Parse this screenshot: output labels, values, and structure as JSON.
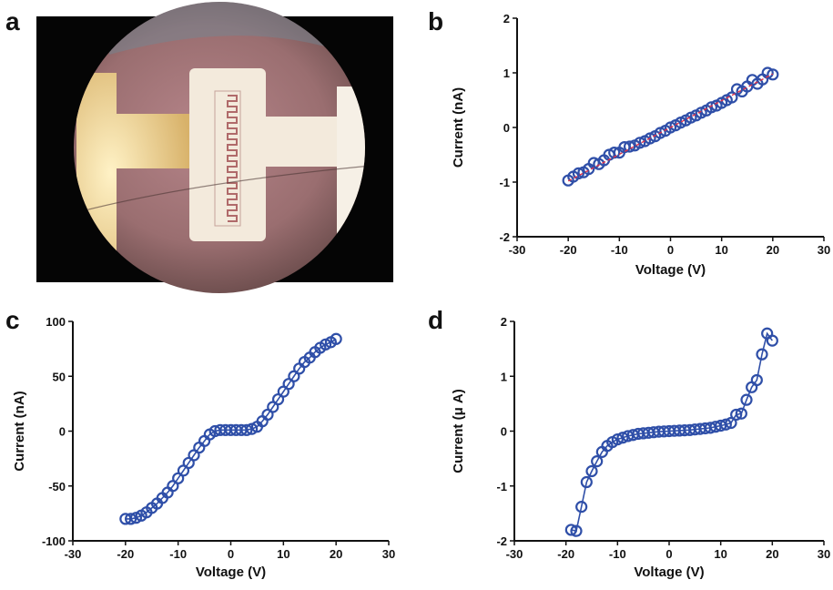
{
  "panels": {
    "a": "a",
    "b": "b",
    "c": "c",
    "d": "d"
  },
  "photo": {
    "description_icon": "microscope-micrograph-interdigitated-electrode"
  },
  "colors": {
    "marker": "#2f4fa8",
    "line": "#2f4fa8",
    "fit": "#e0334a",
    "axis": "#111111"
  },
  "chart_data": [
    {
      "id": "b",
      "type": "scatter",
      "xlabel": "Voltage (V)",
      "ylabel": "Current (nA)",
      "xlim": [
        -30,
        30
      ],
      "ylim": [
        -2,
        2
      ],
      "xticks": [
        -30,
        -20,
        -10,
        0,
        10,
        20,
        30
      ],
      "yticks": [
        -2,
        -1,
        0,
        1,
        2
      ],
      "fit_line": {
        "x": [
          -20,
          20
        ],
        "y": [
          -0.98,
          0.98
        ]
      },
      "series": [
        {
          "x": [
            -20,
            -19,
            -18,
            -17,
            -16,
            -15,
            -14,
            -13,
            -12,
            -11,
            -10,
            -9,
            -8,
            -7,
            -6,
            -5,
            -4,
            -3,
            -2,
            -1,
            0,
            1,
            2,
            3,
            4,
            5,
            6,
            7,
            8,
            9,
            10,
            11,
            12,
            13,
            14,
            15,
            16,
            17,
            18,
            19,
            20
          ],
          "y": [
            -0.97,
            -0.9,
            -0.84,
            -0.82,
            -0.76,
            -0.65,
            -0.67,
            -0.6,
            -0.5,
            -0.46,
            -0.46,
            -0.36,
            -0.35,
            -0.33,
            -0.28,
            -0.25,
            -0.2,
            -0.16,
            -0.1,
            -0.06,
            0.0,
            0.04,
            0.09,
            0.13,
            0.18,
            0.22,
            0.27,
            0.31,
            0.37,
            0.4,
            0.45,
            0.5,
            0.55,
            0.7,
            0.66,
            0.75,
            0.87,
            0.8,
            0.88,
            1.0,
            0.97
          ]
        }
      ]
    },
    {
      "id": "c",
      "type": "line",
      "xlabel": "Voltage (V)",
      "ylabel": "Current (nA)",
      "xlim": [
        -30,
        30
      ],
      "ylim": [
        -100,
        100
      ],
      "xticks": [
        -30,
        -20,
        -10,
        0,
        10,
        20,
        30
      ],
      "yticks": [
        -100,
        -50,
        0,
        50,
        100
      ],
      "series": [
        {
          "x": [
            -20,
            -19,
            -18,
            -17,
            -16,
            -15,
            -14,
            -13,
            -12,
            -11,
            -10,
            -9,
            -8,
            -7,
            -6,
            -5,
            -4,
            -3,
            -2,
            -1,
            0,
            1,
            2,
            3,
            4,
            5,
            6,
            7,
            8,
            9,
            10,
            11,
            12,
            13,
            14,
            15,
            16,
            17,
            18,
            19,
            20
          ],
          "y": [
            -80,
            -80,
            -79,
            -77,
            -74,
            -70,
            -66,
            -61,
            -56,
            -50,
            -43,
            -36,
            -29,
            -22,
            -15,
            -9,
            -3,
            0,
            1,
            1,
            1,
            1,
            1,
            1,
            2,
            4,
            9,
            15,
            22,
            29,
            36,
            43,
            50,
            57,
            63,
            67,
            72,
            76,
            79,
            81,
            84
          ]
        }
      ]
    },
    {
      "id": "d",
      "type": "line",
      "xlabel": "Voltage (V)",
      "ylabel": "Current (μ A)",
      "xlim": [
        -30,
        30
      ],
      "ylim": [
        -2,
        2
      ],
      "xticks": [
        -30,
        -20,
        -10,
        0,
        10,
        20,
        30
      ],
      "yticks": [
        -2,
        -1,
        0,
        1,
        2
      ],
      "series": [
        {
          "x": [
            -19,
            -18,
            -17,
            -16,
            -15,
            -14,
            -13,
            -12,
            -11,
            -10,
            -9,
            -8,
            -7,
            -6,
            -5,
            -4,
            -3,
            -2,
            -1,
            0,
            1,
            2,
            3,
            4,
            5,
            6,
            7,
            8,
            9,
            10,
            11,
            12,
            13,
            14,
            15,
            16,
            17,
            18,
            19,
            20
          ],
          "y": [
            -1.8,
            -1.82,
            -1.38,
            -0.93,
            -0.73,
            -0.55,
            -0.38,
            -0.27,
            -0.2,
            -0.15,
            -0.12,
            -0.09,
            -0.07,
            -0.05,
            -0.04,
            -0.03,
            -0.02,
            -0.01,
            -0.005,
            0.0,
            0.005,
            0.01,
            0.015,
            0.02,
            0.03,
            0.04,
            0.05,
            0.06,
            0.08,
            0.1,
            0.12,
            0.15,
            0.3,
            0.32,
            0.57,
            0.8,
            0.93,
            1.4,
            1.78,
            1.65
          ]
        }
      ]
    }
  ]
}
